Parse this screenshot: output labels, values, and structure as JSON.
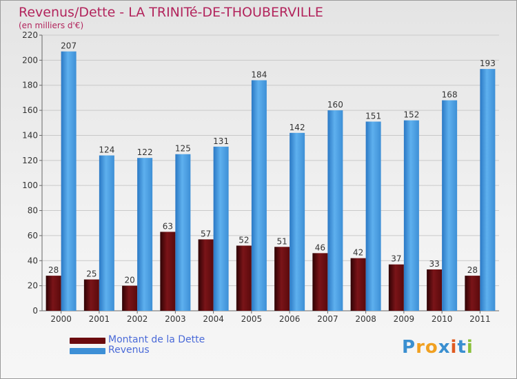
{
  "chart_data": {
    "type": "bar",
    "title": "Revenus/Dette - LA TRINITé-DE-THOUBERVILLE",
    "subtitle": "(en milliers d'€)",
    "categories": [
      "2000",
      "2001",
      "2002",
      "2003",
      "2004",
      "2005",
      "2006",
      "2007",
      "2008",
      "2009",
      "2010",
      "2011"
    ],
    "series": [
      {
        "name": "Montant de la Dette",
        "color": "#6b0a0e",
        "values": [
          28,
          25,
          20,
          63,
          57,
          52,
          51,
          46,
          42,
          37,
          33,
          28
        ]
      },
      {
        "name": "Revenus",
        "color": "#3d8fd6",
        "values": [
          207,
          124,
          122,
          125,
          131,
          184,
          142,
          160,
          151,
          152,
          168,
          193
        ]
      }
    ],
    "ylim": [
      0,
      220
    ],
    "yticks": [
      0,
      20,
      40,
      60,
      80,
      100,
      120,
      140,
      160,
      180,
      200,
      220
    ],
    "grid": true,
    "legend": "bottom-left"
  },
  "logo": {
    "letters": [
      "P",
      "r",
      "o",
      "x",
      "i",
      "t",
      "i"
    ],
    "colors": [
      "#3a8fd0",
      "#f0a020",
      "#f0a020",
      "#3a8fd0",
      "#e05a20",
      "#3a8fd0",
      "#8ac03a"
    ]
  }
}
